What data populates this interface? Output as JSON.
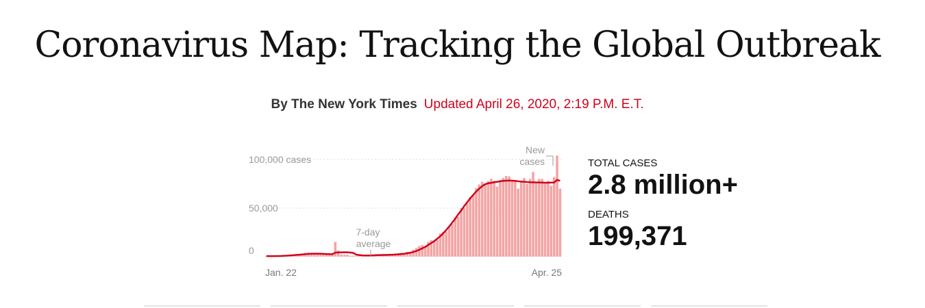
{
  "headline": "Coronavirus Map: Tracking the Global Outbreak",
  "byline": {
    "author": "By The New York Times",
    "updated": "Updated April 26, 2020, 2:19 P.M. E.T."
  },
  "stats": {
    "total_label": "TOTAL CASES",
    "total_value": "2.8 million+",
    "deaths_label": "DEATHS",
    "deaths_value": "199,371"
  },
  "colors": {
    "bar": "#f3a5a5",
    "line": "#d0021b",
    "update_red": "#d0021b"
  },
  "chart_data": {
    "type": "bar",
    "title": "",
    "xlabel": "",
    "ylabel": "",
    "x_tick_labels": [
      "Jan. 22",
      "Apr. 25"
    ],
    "y_tick_labels": [
      "0",
      "50,000",
      "100,000 cases"
    ],
    "y_ticks": [
      0,
      50000,
      100000
    ],
    "ylim": [
      0,
      100000
    ],
    "grid": true,
    "annotations": [
      "New cases",
      "7-day average"
    ],
    "series": [
      {
        "name": "New cases",
        "type": "bar",
        "values": [
          600,
          100,
          600,
          500,
          800,
          1000,
          1700,
          1700,
          2000,
          2100,
          2600,
          2800,
          3200,
          3900,
          3900,
          3600,
          3200,
          2700,
          2500,
          2600,
          2100,
          2500,
          2200,
          15200,
          6500,
          2200,
          2000,
          2000,
          1000,
          1000,
          600,
          1200,
          1200,
          1300,
          1900,
          1600,
          1800,
          2000,
          2400,
          1900,
          1600,
          1800,
          2100,
          2900,
          3500,
          4000,
          3800,
          4900,
          5200,
          7000,
          8900,
          11000,
          12000,
          10500,
          15200,
          17000,
          16500,
          17400,
          23800,
          25500,
          26000,
          31000,
          33600,
          40400,
          41000,
          49800,
          50100,
          55200,
          61500,
          63400,
          70500,
          74200,
          77100,
          75500,
          77800,
          80200,
          78100,
          72000,
          79000,
          81000,
          83000,
          82500,
          79000,
          77400,
          70000,
          77200,
          81000,
          75000,
          80000,
          87000,
          76500,
          80000,
          80000,
          75000,
          78000,
          73000,
          82000,
          104000,
          70000
        ]
      },
      {
        "name": "7-day average",
        "type": "line",
        "values": [
          600,
          500,
          550,
          600,
          650,
          700,
          900,
          1100,
          1300,
          1500,
          1800,
          2000,
          2300,
          2600,
          2900,
          3000,
          3100,
          3100,
          3000,
          2900,
          2700,
          2600,
          2500,
          4200,
          4300,
          4400,
          4500,
          4500,
          4200,
          3900,
          2000,
          1700,
          1300,
          1200,
          1200,
          1300,
          1400,
          1600,
          1700,
          1800,
          1800,
          1900,
          2000,
          2200,
          2400,
          2700,
          3000,
          3500,
          4000,
          4800,
          5800,
          7000,
          8500,
          10000,
          12000,
          14000,
          16000,
          18500,
          21000,
          24000,
          27500,
          31000,
          35000,
          39000,
          43500,
          47500,
          52000,
          56000,
          60000,
          63500,
          67000,
          70000,
          72500,
          74500,
          75500,
          76000,
          76500,
          77000,
          77500,
          78000,
          78200,
          78300,
          78200,
          78000,
          77600,
          77300,
          77000,
          76800,
          76600,
          76500,
          76400,
          76300,
          76200,
          76100,
          76100,
          76200,
          76300,
          79000,
          78000
        ]
      }
    ]
  }
}
